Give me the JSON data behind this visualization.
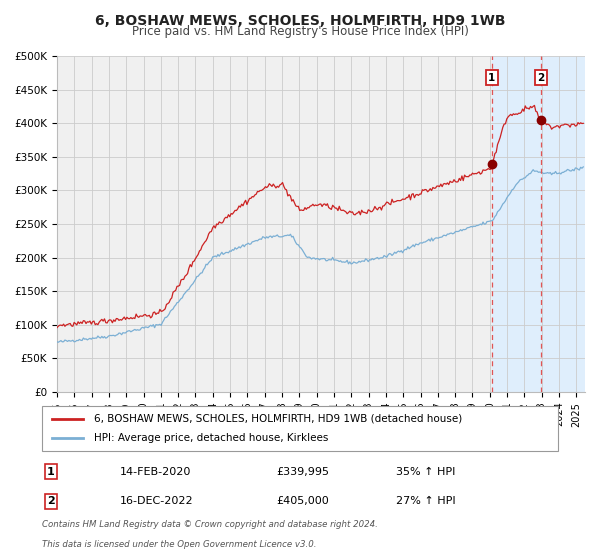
{
  "title": "6, BOSHAW MEWS, SCHOLES, HOLMFIRTH, HD9 1WB",
  "subtitle": "Price paid vs. HM Land Registry's House Price Index (HPI)",
  "xlim": [
    1995.0,
    2025.5
  ],
  "ylim": [
    0,
    500000
  ],
  "yticks": [
    0,
    50000,
    100000,
    150000,
    200000,
    250000,
    300000,
    350000,
    400000,
    450000,
    500000
  ],
  "ytick_labels": [
    "£0",
    "£50K",
    "£100K",
    "£150K",
    "£200K",
    "£250K",
    "£300K",
    "£350K",
    "£400K",
    "£450K",
    "£500K"
  ],
  "xticks": [
    1995,
    1996,
    1997,
    1998,
    1999,
    2000,
    2001,
    2002,
    2003,
    2004,
    2005,
    2006,
    2007,
    2008,
    2009,
    2010,
    2011,
    2012,
    2013,
    2014,
    2015,
    2016,
    2017,
    2018,
    2019,
    2020,
    2021,
    2022,
    2023,
    2024,
    2025
  ],
  "background_color": "#ffffff",
  "plot_bg_color": "#f0f0f0",
  "grid_color": "#cccccc",
  "hpi_line_color": "#7bafd4",
  "price_line_color": "#cc2222",
  "highlight_bg_color": "#ddeeff",
  "vline_color": "#e05555",
  "marker_color": "#880000",
  "sale1_x": 2020.12,
  "sale1_y": 339995,
  "sale1_label": "1",
  "sale1_date": "14-FEB-2020",
  "sale1_price": "£339,995",
  "sale1_hpi": "35% ↑ HPI",
  "sale2_x": 2022.96,
  "sale2_y": 405000,
  "sale2_label": "2",
  "sale2_date": "16-DEC-2022",
  "sale2_price": "£405,000",
  "sale2_hpi": "27% ↑ HPI",
  "legend_line1": "6, BOSHAW MEWS, SCHOLES, HOLMFIRTH, HD9 1WB (detached house)",
  "legend_line2": "HPI: Average price, detached house, Kirklees",
  "footer1": "Contains HM Land Registry data © Crown copyright and database right 2024.",
  "footer2": "This data is licensed under the Open Government Licence v3.0.",
  "title_fontsize": 10,
  "subtitle_fontsize": 8.5
}
